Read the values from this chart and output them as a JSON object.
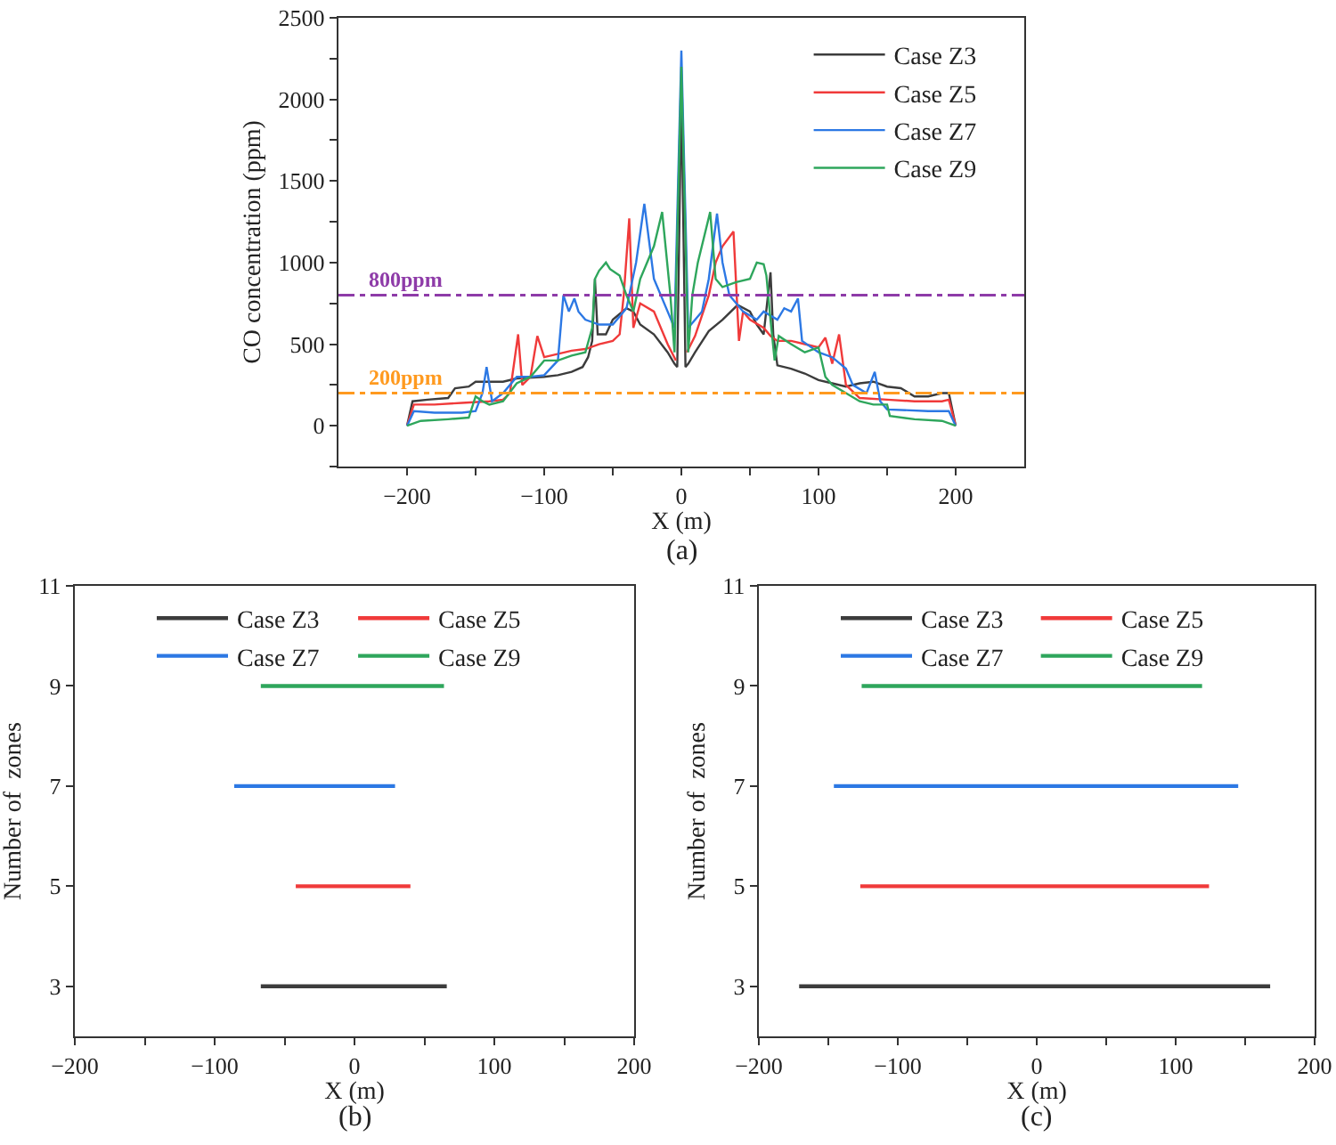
{
  "chart_data": [
    {
      "type": "line",
      "xlabel": "X (m)",
      "ylabel": "CO concentration (ppm)",
      "xlim": [
        -250,
        250
      ],
      "ylim": [
        -250,
        2500
      ],
      "xticks": [
        -200,
        {
          "value": -150,
          "label": null
        },
        -100,
        {
          "value": -50,
          "label": null
        },
        0,
        {
          "value": 50,
          "label": null
        },
        100,
        {
          "value": 150,
          "label": null
        },
        200
      ],
      "yticks": [
        {
          "value": -250,
          "label": null
        },
        0,
        {
          "value": 250,
          "label": null
        },
        500,
        {
          "value": 750,
          "label": null
        },
        1000,
        {
          "value": 1250,
          "label": null
        },
        1500,
        {
          "value": 1750,
          "label": null
        },
        2000,
        {
          "value": 2250,
          "label": null
        },
        2500
      ],
      "grid": false,
      "legend": "top right",
      "marker": "none",
      "line_style": "solid",
      "ref_lines": [
        {
          "axis": "y",
          "value": 800,
          "label": "800ppm",
          "color": "#8e3ba8",
          "line_style": "dashdot"
        },
        {
          "axis": "y",
          "value": 200,
          "label": "200ppm",
          "color": "#ff9a1f",
          "line_style": "dashdot"
        }
      ],
      "annotations": [
        "(a)"
      ],
      "series": [
        {
          "name": "Case Z3",
          "color": "#3c3c3c",
          "x": [
            -200,
            -196,
            -185,
            -170,
            -165,
            -155,
            -150,
            -130,
            -120,
            -100,
            -90,
            -80,
            -72,
            -68,
            -65,
            -63,
            -61,
            -55,
            -50,
            -40,
            -35,
            -30,
            -20,
            -10,
            -5,
            -3,
            0,
            3,
            5,
            10,
            20,
            30,
            41,
            50,
            55,
            60,
            65,
            67,
            70,
            80,
            90,
            100,
            110,
            120,
            130,
            140,
            150,
            160,
            170,
            180,
            190,
            195,
            200
          ],
          "values": [
            0,
            150,
            160,
            170,
            230,
            240,
            270,
            270,
            290,
            300,
            310,
            330,
            360,
            420,
            520,
            900,
            560,
            560,
            650,
            720,
            700,
            620,
            560,
            450,
            380,
            360,
            2050,
            360,
            380,
            450,
            580,
            650,
            740,
            700,
            620,
            560,
            940,
            560,
            370,
            350,
            320,
            280,
            260,
            240,
            260,
            270,
            240,
            230,
            180,
            180,
            200,
            200,
            0
          ]
        },
        {
          "name": "Case Z5",
          "color": "#f03a3a",
          "x": [
            -200,
            -195,
            -180,
            -160,
            -140,
            -130,
            -125,
            -119,
            -116,
            -110,
            -105,
            -100,
            -80,
            -70,
            -60,
            -50,
            -45,
            -42,
            -38,
            -35,
            -30,
            -20,
            -10,
            -4,
            0,
            4,
            10,
            20,
            25,
            30,
            38,
            42,
            45,
            50,
            60,
            65,
            70,
            80,
            90,
            100,
            105,
            110,
            115,
            120,
            130,
            150,
            170,
            190,
            195,
            200
          ],
          "values": [
            0,
            130,
            130,
            140,
            150,
            160,
            200,
            560,
            250,
            300,
            550,
            420,
            460,
            470,
            500,
            520,
            560,
            800,
            1270,
            600,
            750,
            700,
            500,
            400,
            null,
            450,
            550,
            800,
            1000,
            1100,
            1190,
            520,
            700,
            650,
            600,
            550,
            520,
            520,
            500,
            480,
            540,
            380,
            560,
            250,
            170,
            160,
            150,
            150,
            160,
            0
          ]
        },
        {
          "name": "Case Z7",
          "color": "#2c78e4",
          "x": [
            -200,
            -195,
            -180,
            -160,
            -150,
            -145,
            -142,
            -138,
            -130,
            -120,
            -110,
            -100,
            -90,
            -86,
            -82,
            -78,
            -75,
            -70,
            -60,
            -50,
            -40,
            -33,
            -27,
            -20,
            -10,
            -5,
            0,
            5,
            15,
            20,
            26,
            30,
            35,
            45,
            55,
            60,
            70,
            75,
            80,
            85,
            88,
            100,
            110,
            120,
            125,
            135,
            141,
            145,
            150,
            180,
            195,
            200
          ],
          "values": [
            0,
            90,
            80,
            80,
            90,
            200,
            360,
            150,
            200,
            300,
            300,
            310,
            400,
            800,
            700,
            780,
            700,
            650,
            620,
            620,
            720,
            1000,
            1360,
            900,
            700,
            600,
            2300,
            600,
            700,
            900,
            1300,
            1000,
            800,
            700,
            650,
            700,
            650,
            720,
            700,
            780,
            520,
            450,
            420,
            350,
            250,
            200,
            330,
            150,
            100,
            90,
            90,
            0
          ]
        },
        {
          "name": "Case Z9",
          "color": "#2ea65c",
          "x": [
            -200,
            -190,
            -170,
            -155,
            -150,
            -145,
            -140,
            -130,
            -120,
            -110,
            -100,
            -90,
            -80,
            -70,
            -65,
            -63,
            -60,
            -55,
            -52,
            -45,
            -40,
            -35,
            -30,
            -20,
            -14,
            -8,
            -5,
            0,
            5,
            8,
            12,
            21,
            25,
            30,
            40,
            50,
            55,
            60,
            62,
            65,
            68,
            71,
            80,
            90,
            100,
            105,
            110,
            120,
            130,
            140,
            150,
            152,
            170,
            190,
            200
          ],
          "values": [
            0,
            30,
            40,
            50,
            180,
            150,
            130,
            150,
            260,
            300,
            400,
            400,
            430,
            450,
            600,
            900,
            950,
            1000,
            960,
            920,
            800,
            700,
            900,
            1100,
            1310,
            800,
            450,
            2200,
            450,
            800,
            1000,
            1310,
            900,
            850,
            880,
            900,
            1000,
            990,
            920,
            650,
            400,
            550,
            500,
            450,
            480,
            300,
            250,
            200,
            150,
            130,
            130,
            60,
            40,
            30,
            0
          ]
        }
      ]
    },
    {
      "type": "line",
      "xlabel": "X (m)",
      "ylabel": "Number of  zones",
      "xlim": [
        -200,
        200
      ],
      "ylim": [
        2,
        11
      ],
      "xticks": [
        -200,
        {
          "value": -150,
          "label": null
        },
        -100,
        {
          "value": -50,
          "label": null
        },
        0,
        {
          "value": 50,
          "label": null
        },
        100,
        {
          "value": 150,
          "label": null
        },
        200
      ],
      "yticks": [
        3,
        5,
        7,
        9,
        11
      ],
      "grid": false,
      "legend": "top",
      "marker": "none",
      "line_style": "solid",
      "annotations": [
        "(b)"
      ],
      "series": [
        {
          "name": "Case Z3",
          "color": "#3c3c3c",
          "x": [
            -67,
            66
          ],
          "values": [
            3,
            3
          ]
        },
        {
          "name": "Case Z5",
          "color": "#f03a3a",
          "x": [
            -42,
            40
          ],
          "values": [
            5,
            5
          ]
        },
        {
          "name": "Case Z7",
          "color": "#2c78e4",
          "x": [
            -86,
            29
          ],
          "values": [
            7,
            7
          ]
        },
        {
          "name": "Case Z9",
          "color": "#2ea65c",
          "x": [
            -67,
            64
          ],
          "values": [
            9,
            9
          ]
        }
      ]
    },
    {
      "type": "line",
      "xlabel": "X (m)",
      "ylabel": "Number of  zones",
      "xlim": [
        -200,
        200
      ],
      "ylim": [
        2,
        11
      ],
      "xticks": [
        -200,
        {
          "value": -150,
          "label": null
        },
        -100,
        {
          "value": -50,
          "label": null
        },
        0,
        {
          "value": 50,
          "label": null
        },
        100,
        {
          "value": 150,
          "label": null
        },
        200
      ],
      "yticks": [
        3,
        5,
        7,
        9,
        11
      ],
      "grid": false,
      "legend": "top",
      "marker": "none",
      "line_style": "solid",
      "annotations": [
        "(c)"
      ],
      "series": [
        {
          "name": "Case Z3",
          "color": "#3c3c3c",
          "x": [
            -171,
            168
          ],
          "values": [
            3,
            3
          ]
        },
        {
          "name": "Case Z5",
          "color": "#f03a3a",
          "x": [
            -127,
            124
          ],
          "values": [
            5,
            5
          ]
        },
        {
          "name": "Case Z7",
          "color": "#2c78e4",
          "x": [
            -146,
            145
          ],
          "values": [
            7,
            7
          ]
        },
        {
          "name": "Case Z9",
          "color": "#2ea65c",
          "x": [
            -126,
            119
          ],
          "values": [
            9,
            9
          ]
        }
      ]
    }
  ]
}
